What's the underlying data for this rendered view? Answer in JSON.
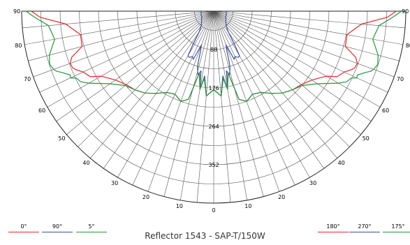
{
  "chart_data": {
    "type": "polar",
    "title": "Reflector 1543 - SAP-T/150W",
    "radial_ticks": [
      "88",
      "176",
      "264",
      "352"
    ],
    "radial_values": [
      88,
      176,
      264,
      352
    ],
    "rmax": 440,
    "angle_ticks_right": [
      "0",
      "10",
      "20",
      "30",
      "40",
      "50",
      "60",
      "70",
      "80",
      "90"
    ],
    "angle_ticks_left": [
      "10",
      "20",
      "30",
      "40",
      "50",
      "60",
      "70",
      "80",
      "90"
    ],
    "angle_label_values": [
      0,
      10,
      20,
      30,
      40,
      50,
      60,
      70,
      80,
      90
    ],
    "spoke_step_deg": 5,
    "grid": true,
    "series": [
      {
        "name": "0°",
        "color": "#e8262a",
        "side": "left",
        "points": [
          [
            0,
            180
          ],
          [
            5,
            195
          ],
          [
            8,
            155
          ],
          [
            10,
            182
          ],
          [
            13,
            145
          ],
          [
            16,
            210
          ],
          [
            18,
            215
          ],
          [
            20,
            220
          ],
          [
            25,
            210
          ],
          [
            30,
            215
          ],
          [
            35,
            230
          ],
          [
            40,
            245
          ],
          [
            45,
            255
          ],
          [
            50,
            262
          ],
          [
            55,
            275
          ],
          [
            60,
            298
          ],
          [
            62,
            320
          ],
          [
            65,
            330
          ],
          [
            67,
            343
          ],
          [
            68,
            348
          ],
          [
            70,
            350
          ],
          [
            72,
            342
          ],
          [
            75,
            312
          ],
          [
            80,
            310
          ],
          [
            85,
            340
          ],
          [
            88,
            398
          ],
          [
            90,
            418
          ]
        ]
      },
      {
        "name": "90°",
        "color": "#3b4fa3",
        "side": "left",
        "points": [
          [
            0,
            180
          ],
          [
            5,
            195
          ],
          [
            8,
            150
          ],
          [
            10,
            182
          ],
          [
            12,
            140
          ],
          [
            14,
            150
          ],
          [
            16,
            135
          ],
          [
            17,
            120
          ],
          [
            18,
            100
          ],
          [
            20,
            82
          ],
          [
            23,
            120
          ],
          [
            25,
            115
          ],
          [
            28,
            120
          ],
          [
            30,
            118
          ],
          [
            32,
            90
          ],
          [
            35,
            58
          ],
          [
            40,
            45
          ],
          [
            45,
            40
          ],
          [
            50,
            36
          ],
          [
            55,
            34
          ],
          [
            60,
            32
          ],
          [
            65,
            30
          ],
          [
            70,
            30
          ],
          [
            75,
            30
          ],
          [
            80,
            29
          ],
          [
            85,
            29
          ],
          [
            90,
            29
          ]
        ]
      },
      {
        "name": "5°",
        "color": "#1f9a3b",
        "side": "left",
        "points": [
          [
            0,
            180
          ],
          [
            5,
            195
          ],
          [
            8,
            155
          ],
          [
            10,
            182
          ],
          [
            13,
            145
          ],
          [
            16,
            210
          ],
          [
            18,
            215
          ],
          [
            20,
            220
          ],
          [
            25,
            210
          ],
          [
            30,
            215
          ],
          [
            35,
            230
          ],
          [
            40,
            245
          ],
          [
            45,
            255
          ],
          [
            50,
            265
          ],
          [
            55,
            290
          ],
          [
            60,
            330
          ],
          [
            62,
            345
          ],
          [
            64,
            350
          ],
          [
            65,
            362
          ],
          [
            66,
            360
          ],
          [
            68,
            375
          ],
          [
            69,
            385
          ],
          [
            70,
            390
          ],
          [
            72,
            395
          ],
          [
            75,
            390
          ],
          [
            80,
            370
          ],
          [
            85,
            380
          ],
          [
            88,
            410
          ],
          [
            90,
            430
          ]
        ]
      },
      {
        "name": "180°",
        "color": "#e8262a",
        "side": "right",
        "points": [
          [
            0,
            180
          ],
          [
            5,
            195
          ],
          [
            8,
            155
          ],
          [
            10,
            182
          ],
          [
            13,
            145
          ],
          [
            16,
            210
          ],
          [
            18,
            215
          ],
          [
            20,
            220
          ],
          [
            25,
            210
          ],
          [
            30,
            215
          ],
          [
            35,
            230
          ],
          [
            40,
            245
          ],
          [
            45,
            255
          ],
          [
            50,
            262
          ],
          [
            55,
            275
          ],
          [
            60,
            298
          ],
          [
            62,
            320
          ],
          [
            65,
            330
          ],
          [
            67,
            343
          ],
          [
            68,
            348
          ],
          [
            70,
            350
          ],
          [
            72,
            342
          ],
          [
            75,
            312
          ],
          [
            80,
            310
          ],
          [
            85,
            340
          ],
          [
            88,
            398
          ],
          [
            90,
            418
          ]
        ]
      },
      {
        "name": "270°",
        "color": "#3b4fa3",
        "side": "right",
        "points": [
          [
            0,
            180
          ],
          [
            5,
            195
          ],
          [
            8,
            150
          ],
          [
            10,
            182
          ],
          [
            12,
            140
          ],
          [
            14,
            150
          ],
          [
            16,
            135
          ],
          [
            17,
            120
          ],
          [
            18,
            100
          ],
          [
            20,
            82
          ],
          [
            23,
            120
          ],
          [
            25,
            115
          ],
          [
            28,
            120
          ],
          [
            30,
            118
          ],
          [
            32,
            90
          ],
          [
            35,
            58
          ],
          [
            40,
            45
          ],
          [
            45,
            40
          ],
          [
            50,
            36
          ],
          [
            55,
            34
          ],
          [
            60,
            32
          ],
          [
            65,
            30
          ],
          [
            70,
            30
          ],
          [
            75,
            30
          ],
          [
            80,
            29
          ],
          [
            85,
            29
          ],
          [
            90,
            29
          ]
        ]
      },
      {
        "name": "175°",
        "color": "#1f9a3b",
        "side": "right",
        "points": [
          [
            0,
            180
          ],
          [
            5,
            195
          ],
          [
            8,
            155
          ],
          [
            10,
            182
          ],
          [
            13,
            145
          ],
          [
            16,
            210
          ],
          [
            18,
            215
          ],
          [
            20,
            220
          ],
          [
            25,
            210
          ],
          [
            30,
            215
          ],
          [
            35,
            230
          ],
          [
            40,
            245
          ],
          [
            45,
            255
          ],
          [
            50,
            265
          ],
          [
            55,
            290
          ],
          [
            60,
            330
          ],
          [
            62,
            345
          ],
          [
            64,
            350
          ],
          [
            65,
            362
          ],
          [
            66,
            360
          ],
          [
            68,
            375
          ],
          [
            69,
            385
          ],
          [
            70,
            390
          ],
          [
            72,
            395
          ],
          [
            75,
            390
          ],
          [
            80,
            370
          ],
          [
            85,
            380
          ],
          [
            88,
            410
          ],
          [
            90,
            430
          ]
        ]
      }
    ]
  },
  "legend_left": [
    {
      "label": "0°",
      "color": "#e8262a"
    },
    {
      "label": "90°",
      "color": "#3b4fa3"
    },
    {
      "label": "5°",
      "color": "#1f9a3b"
    }
  ],
  "legend_right": [
    {
      "label": "180°",
      "color": "#e8262a"
    },
    {
      "label": "270°",
      "color": "#3b4fa3"
    },
    {
      "label": "175°",
      "color": "#1f9a3b"
    }
  ]
}
